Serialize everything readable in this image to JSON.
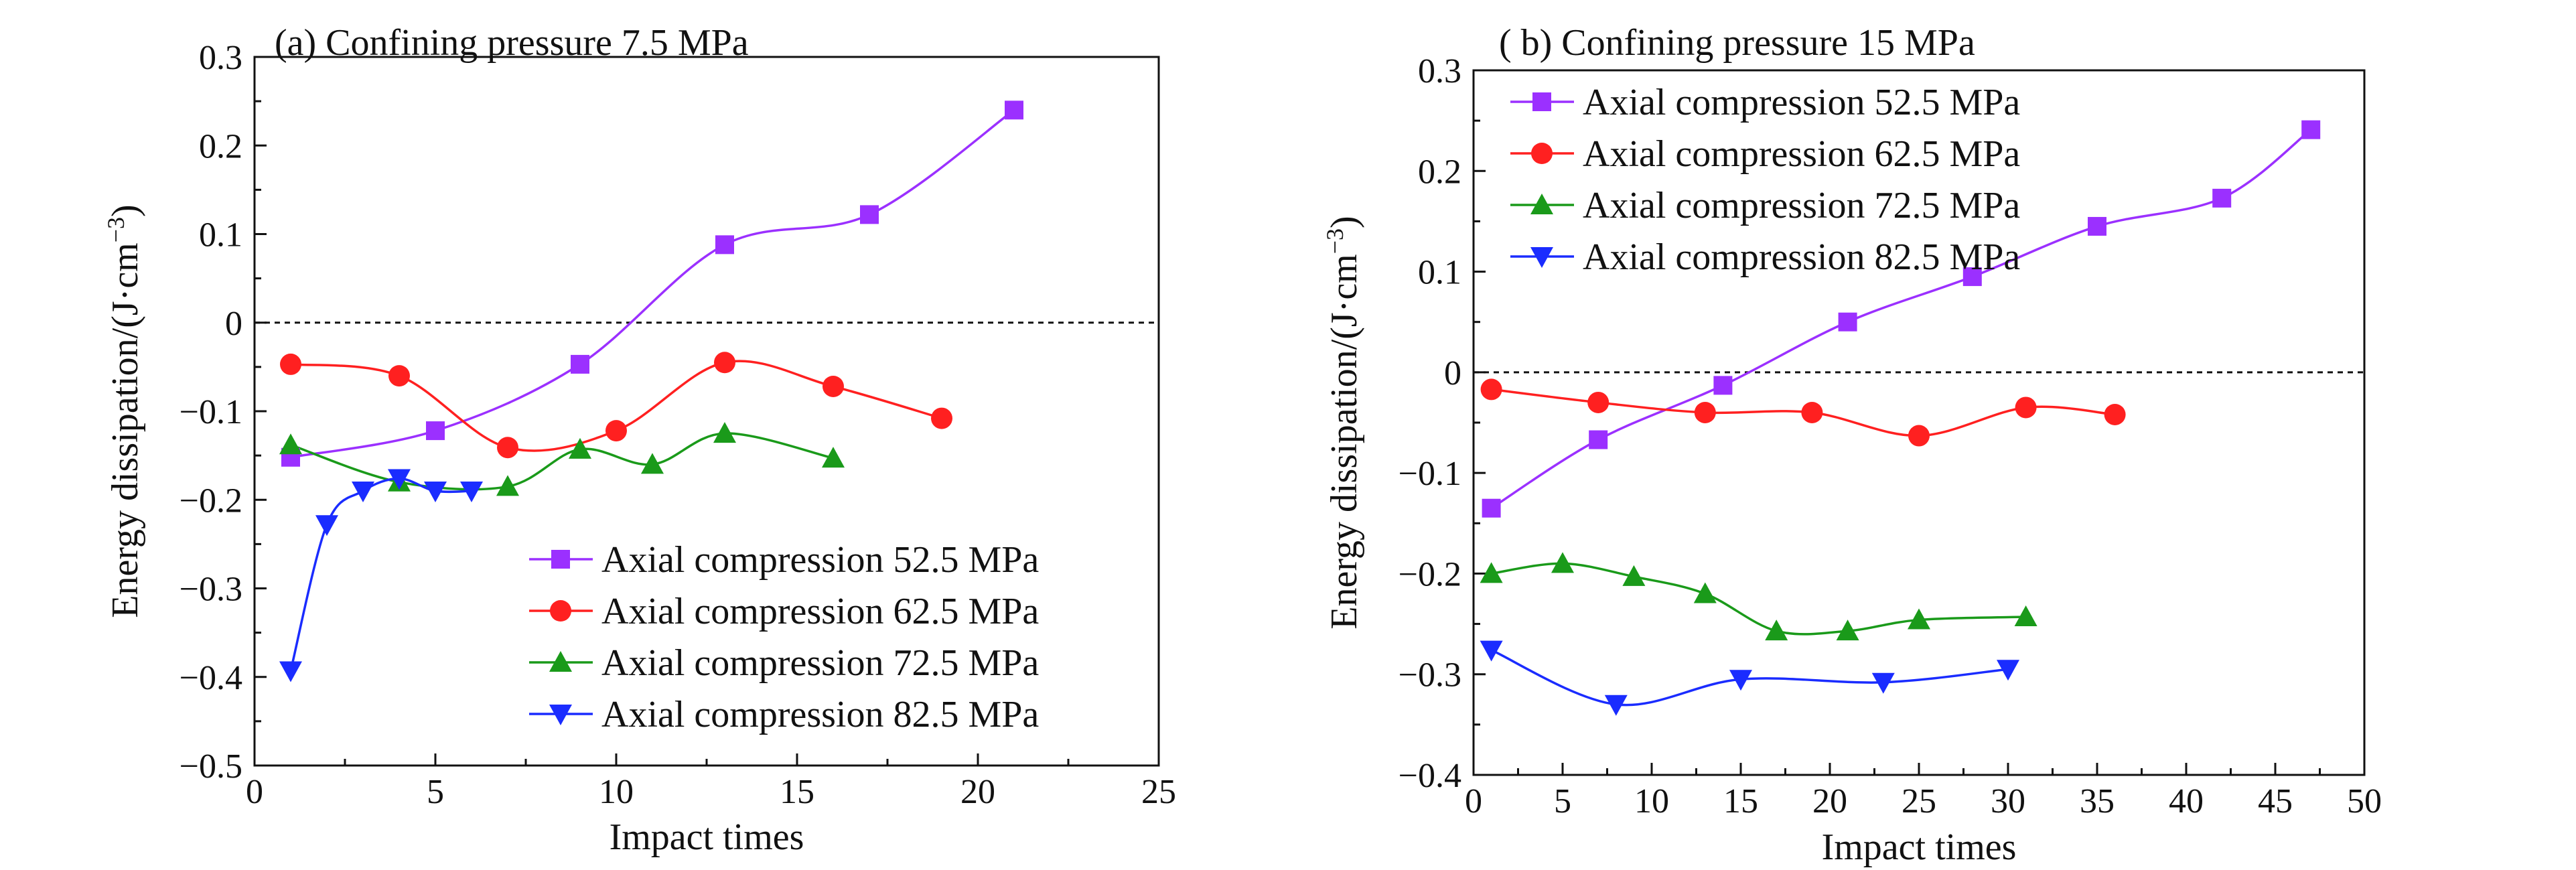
{
  "chart_data": [
    {
      "type": "line",
      "title": "(a) Confining pressure 7.5 MPa",
      "xlabel": "Impact times",
      "ylabel": "Energy dissipation/(J·cm",
      "ylabel_unit_exponent": "−3",
      "ylabel_close": ")",
      "xlim": [
        0,
        25
      ],
      "ylim": [
        -0.5,
        0.3
      ],
      "xticks": [
        0,
        5,
        10,
        15,
        20,
        25
      ],
      "yticks": [
        -0.5,
        -0.4,
        -0.3,
        -0.2,
        -0.1,
        0,
        0.1,
        0.2,
        0.3
      ],
      "xtick_labels": [
        "0",
        "5",
        "10",
        "15",
        "20",
        "25"
      ],
      "ytick_labels": [
        "−0.5",
        "−0.4",
        "−0.3",
        "−0.2",
        "−0.1",
        "0",
        "0.1",
        "0.2",
        "0.3"
      ],
      "reference_line_y": 0,
      "grid": false,
      "legend_position": "bottom-right",
      "series": [
        {
          "name": "Axial compression 52.5 MPa",
          "color": "#9b30ff",
          "marker": "square",
          "x": [
            1,
            5,
            9,
            13,
            17,
            21
          ],
          "y": [
            -0.152,
            -0.122,
            -0.047,
            0.088,
            0.122,
            0.24
          ]
        },
        {
          "name": "Axial compression 62.5 MPa",
          "color": "#ff2020",
          "marker": "circle",
          "x": [
            1,
            4,
            7,
            10,
            13,
            16,
            19
          ],
          "y": [
            -0.047,
            -0.06,
            -0.141,
            -0.122,
            -0.045,
            -0.072,
            -0.108
          ]
        },
        {
          "name": "Axial compression 72.5 MPa",
          "color": "#1a9a1a",
          "marker": "triangle-up",
          "x": [
            1,
            4,
            7,
            9,
            11,
            13,
            16
          ],
          "y": [
            -0.138,
            -0.18,
            -0.185,
            -0.143,
            -0.16,
            -0.125,
            -0.153
          ]
        },
        {
          "name": "Axial compression 82.5 MPa",
          "color": "#1a2cff",
          "marker": "triangle-down",
          "x": [
            1,
            2,
            3,
            4,
            5,
            6
          ],
          "y": [
            -0.393,
            -0.228,
            -0.19,
            -0.176,
            -0.19,
            -0.19
          ]
        }
      ]
    },
    {
      "type": "line",
      "title": "( b) Confining pressure 15 MPa",
      "xlabel": "Impact times",
      "ylabel": "Energy dissipation/(J·cm",
      "ylabel_unit_exponent": "−3",
      "ylabel_close": ")",
      "xlim": [
        0,
        50
      ],
      "ylim": [
        -0.4,
        0.3
      ],
      "xticks": [
        0,
        5,
        10,
        15,
        20,
        25,
        30,
        35,
        40,
        45,
        50
      ],
      "yticks": [
        -0.4,
        -0.3,
        -0.2,
        -0.1,
        0,
        0.1,
        0.2,
        0.3
      ],
      "xtick_labels": [
        "0",
        "5",
        "10",
        "15",
        "20",
        "25",
        "30",
        "35",
        "40",
        "45",
        "50"
      ],
      "ytick_labels": [
        "−0.4",
        "−0.3",
        "−0.2",
        "−0.1",
        "0",
        "0.1",
        "0.2",
        "0.3"
      ],
      "reference_line_y": 0,
      "grid": false,
      "legend_position": "top-left",
      "series": [
        {
          "name": "Axial compression 52.5 MPa",
          "color": "#9b30ff",
          "marker": "square",
          "x": [
            1,
            7,
            14,
            21,
            28,
            35,
            42,
            47
          ],
          "y": [
            -0.135,
            -0.067,
            -0.013,
            0.05,
            0.095,
            0.145,
            0.173,
            0.241
          ]
        },
        {
          "name": "Axial compression 62.5 MPa",
          "color": "#ff2020",
          "marker": "circle",
          "x": [
            1,
            7,
            13,
            19,
            25,
            31,
            36
          ],
          "y": [
            -0.017,
            -0.03,
            -0.04,
            -0.04,
            -0.063,
            -0.035,
            -0.042
          ]
        },
        {
          "name": "Axial compression 72.5 MPa",
          "color": "#1a9a1a",
          "marker": "triangle-up",
          "x": [
            1,
            5,
            9,
            13,
            17,
            21,
            25,
            31
          ],
          "y": [
            -0.2,
            -0.19,
            -0.203,
            -0.22,
            -0.257,
            -0.257,
            -0.246,
            -0.243
          ]
        },
        {
          "name": "Axial compression 82.5 MPa",
          "color": "#1a2cff",
          "marker": "triangle-down",
          "x": [
            1,
            8,
            15,
            23,
            30
          ],
          "y": [
            -0.276,
            -0.33,
            -0.305,
            -0.308,
            -0.295
          ]
        }
      ]
    }
  ]
}
